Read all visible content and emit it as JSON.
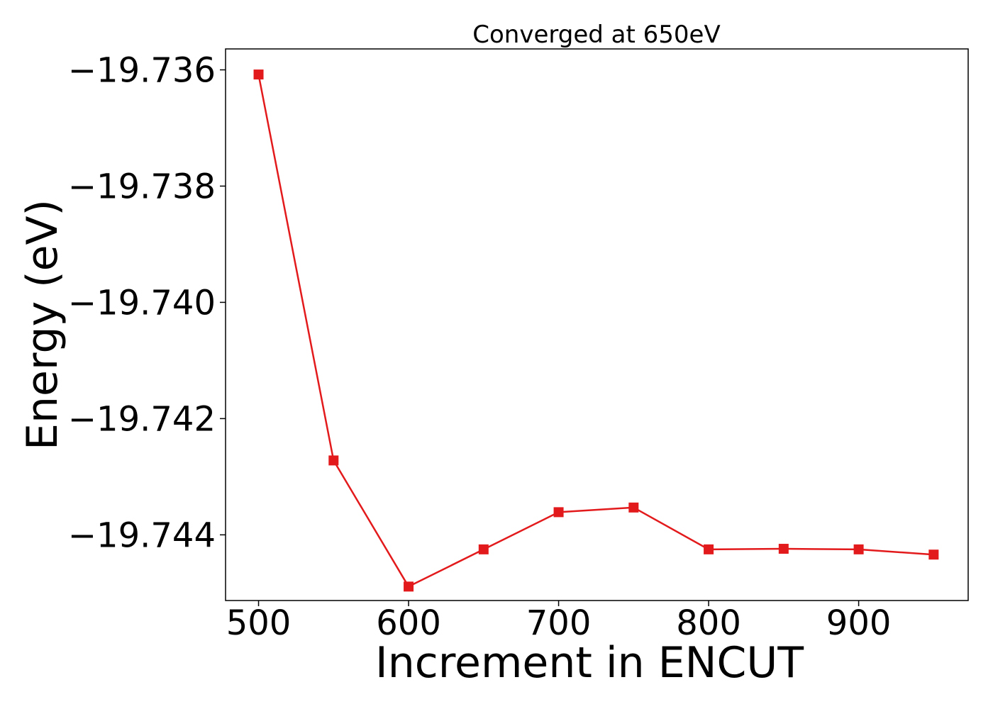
{
  "chart_data": {
    "type": "line",
    "title": "Converged at 650eV",
    "xlabel": "Increment in ENCUT",
    "ylabel": "Energy (eV)",
    "x": [
      500,
      550,
      600,
      650,
      700,
      750,
      800,
      850,
      900,
      950
    ],
    "series": [
      {
        "values": [
          -19.73608,
          -19.74272,
          -19.74489,
          -19.74425,
          -19.74361,
          -19.74353,
          -19.74425,
          -19.74424,
          -19.74425,
          -19.74434
        ]
      }
    ],
    "xlim": [
      478,
      973
    ],
    "ylim": [
      -19.74513,
      -19.73564
    ],
    "xticks": [
      500,
      600,
      700,
      800,
      900
    ],
    "xtick_labels": [
      "500",
      "600",
      "700",
      "800",
      "900"
    ],
    "yticks": [
      -19.736,
      -19.738,
      -19.74,
      -19.742,
      -19.744
    ],
    "ytick_labels": [
      "−19.736",
      "−19.738",
      "−19.740",
      "−19.742",
      "−19.744"
    ],
    "marker": "square",
    "color": "#e31a1c",
    "grid": false,
    "legend": "none"
  }
}
